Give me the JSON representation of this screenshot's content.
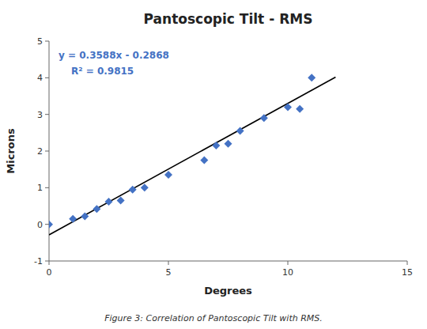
{
  "chart_data": {
    "type": "scatter",
    "title": "Pantoscopic Tilt - RMS",
    "x_label": "Degrees",
    "y_label": "Microns",
    "caption": "Figure 3: Correlation of Pantoscopic Tilt with RMS.",
    "series": [
      {
        "type": "scatter",
        "color": "#4472C4",
        "marker": "diamond",
        "x": [
          0,
          1,
          1.5,
          2,
          2.5,
          3,
          3.5,
          4,
          5,
          6.5,
          7,
          7.5,
          8,
          9,
          10,
          10.5,
          11
        ],
        "values": [
          0.0,
          0.15,
          0.22,
          0.42,
          0.62,
          0.65,
          0.95,
          1.0,
          1.35,
          1.75,
          2.15,
          2.2,
          2.55,
          2.9,
          3.2,
          3.15,
          4.0
        ]
      },
      {
        "type": "line",
        "color": "#000000",
        "x": [
          0,
          12
        ],
        "values": [
          -0.2868,
          4.0188
        ]
      }
    ],
    "annotations": [
      {
        "text": "y = 0.3588x - 0.2868",
        "color": "#4472C4"
      },
      {
        "text": "R² = 0.9815",
        "color": "#4472C4"
      }
    ],
    "xlim": [
      0,
      15
    ],
    "ylim": [
      -1,
      5
    ],
    "xticks": [
      0,
      5,
      10,
      15
    ],
    "yticks": [
      -1,
      0,
      1,
      2,
      3,
      4,
      5
    ],
    "grid": false
  }
}
